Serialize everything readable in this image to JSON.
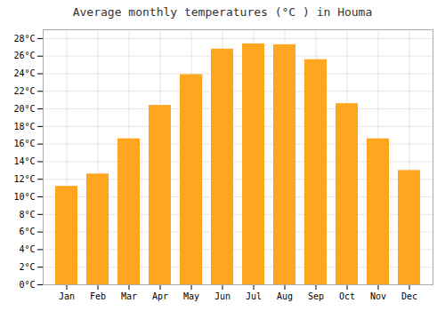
{
  "chart_data": {
    "type": "bar",
    "title": "Average monthly temperatures (°C ) in Houma",
    "categories": [
      "Jan",
      "Feb",
      "Mar",
      "Apr",
      "May",
      "Jun",
      "Jul",
      "Aug",
      "Sep",
      "Oct",
      "Nov",
      "Dec"
    ],
    "values": [
      11.2,
      12.6,
      16.6,
      20.4,
      23.9,
      26.8,
      27.4,
      27.3,
      25.6,
      20.6,
      16.6,
      13.0
    ],
    "color": "#FFA520",
    "ylim": [
      0,
      29
    ],
    "yticks": [
      {
        "value": 0,
        "label": "0°C"
      },
      {
        "value": 2,
        "label": "2°C"
      },
      {
        "value": 4,
        "label": "4°C"
      },
      {
        "value": 6,
        "label": "6°C"
      },
      {
        "value": 8,
        "label": "8°C"
      },
      {
        "value": 10,
        "label": "10°C"
      },
      {
        "value": 12,
        "label": "12°C"
      },
      {
        "value": 14,
        "label": "14°C"
      },
      {
        "value": 16,
        "label": "16°C"
      },
      {
        "value": 18,
        "label": "18°C"
      },
      {
        "value": 20,
        "label": "20°C"
      },
      {
        "value": 22,
        "label": "22°C"
      },
      {
        "value": 24,
        "label": "24°C"
      },
      {
        "value": 26,
        "label": "26°C"
      },
      {
        "value": 28,
        "label": "28°C"
      }
    ],
    "grid": true
  }
}
